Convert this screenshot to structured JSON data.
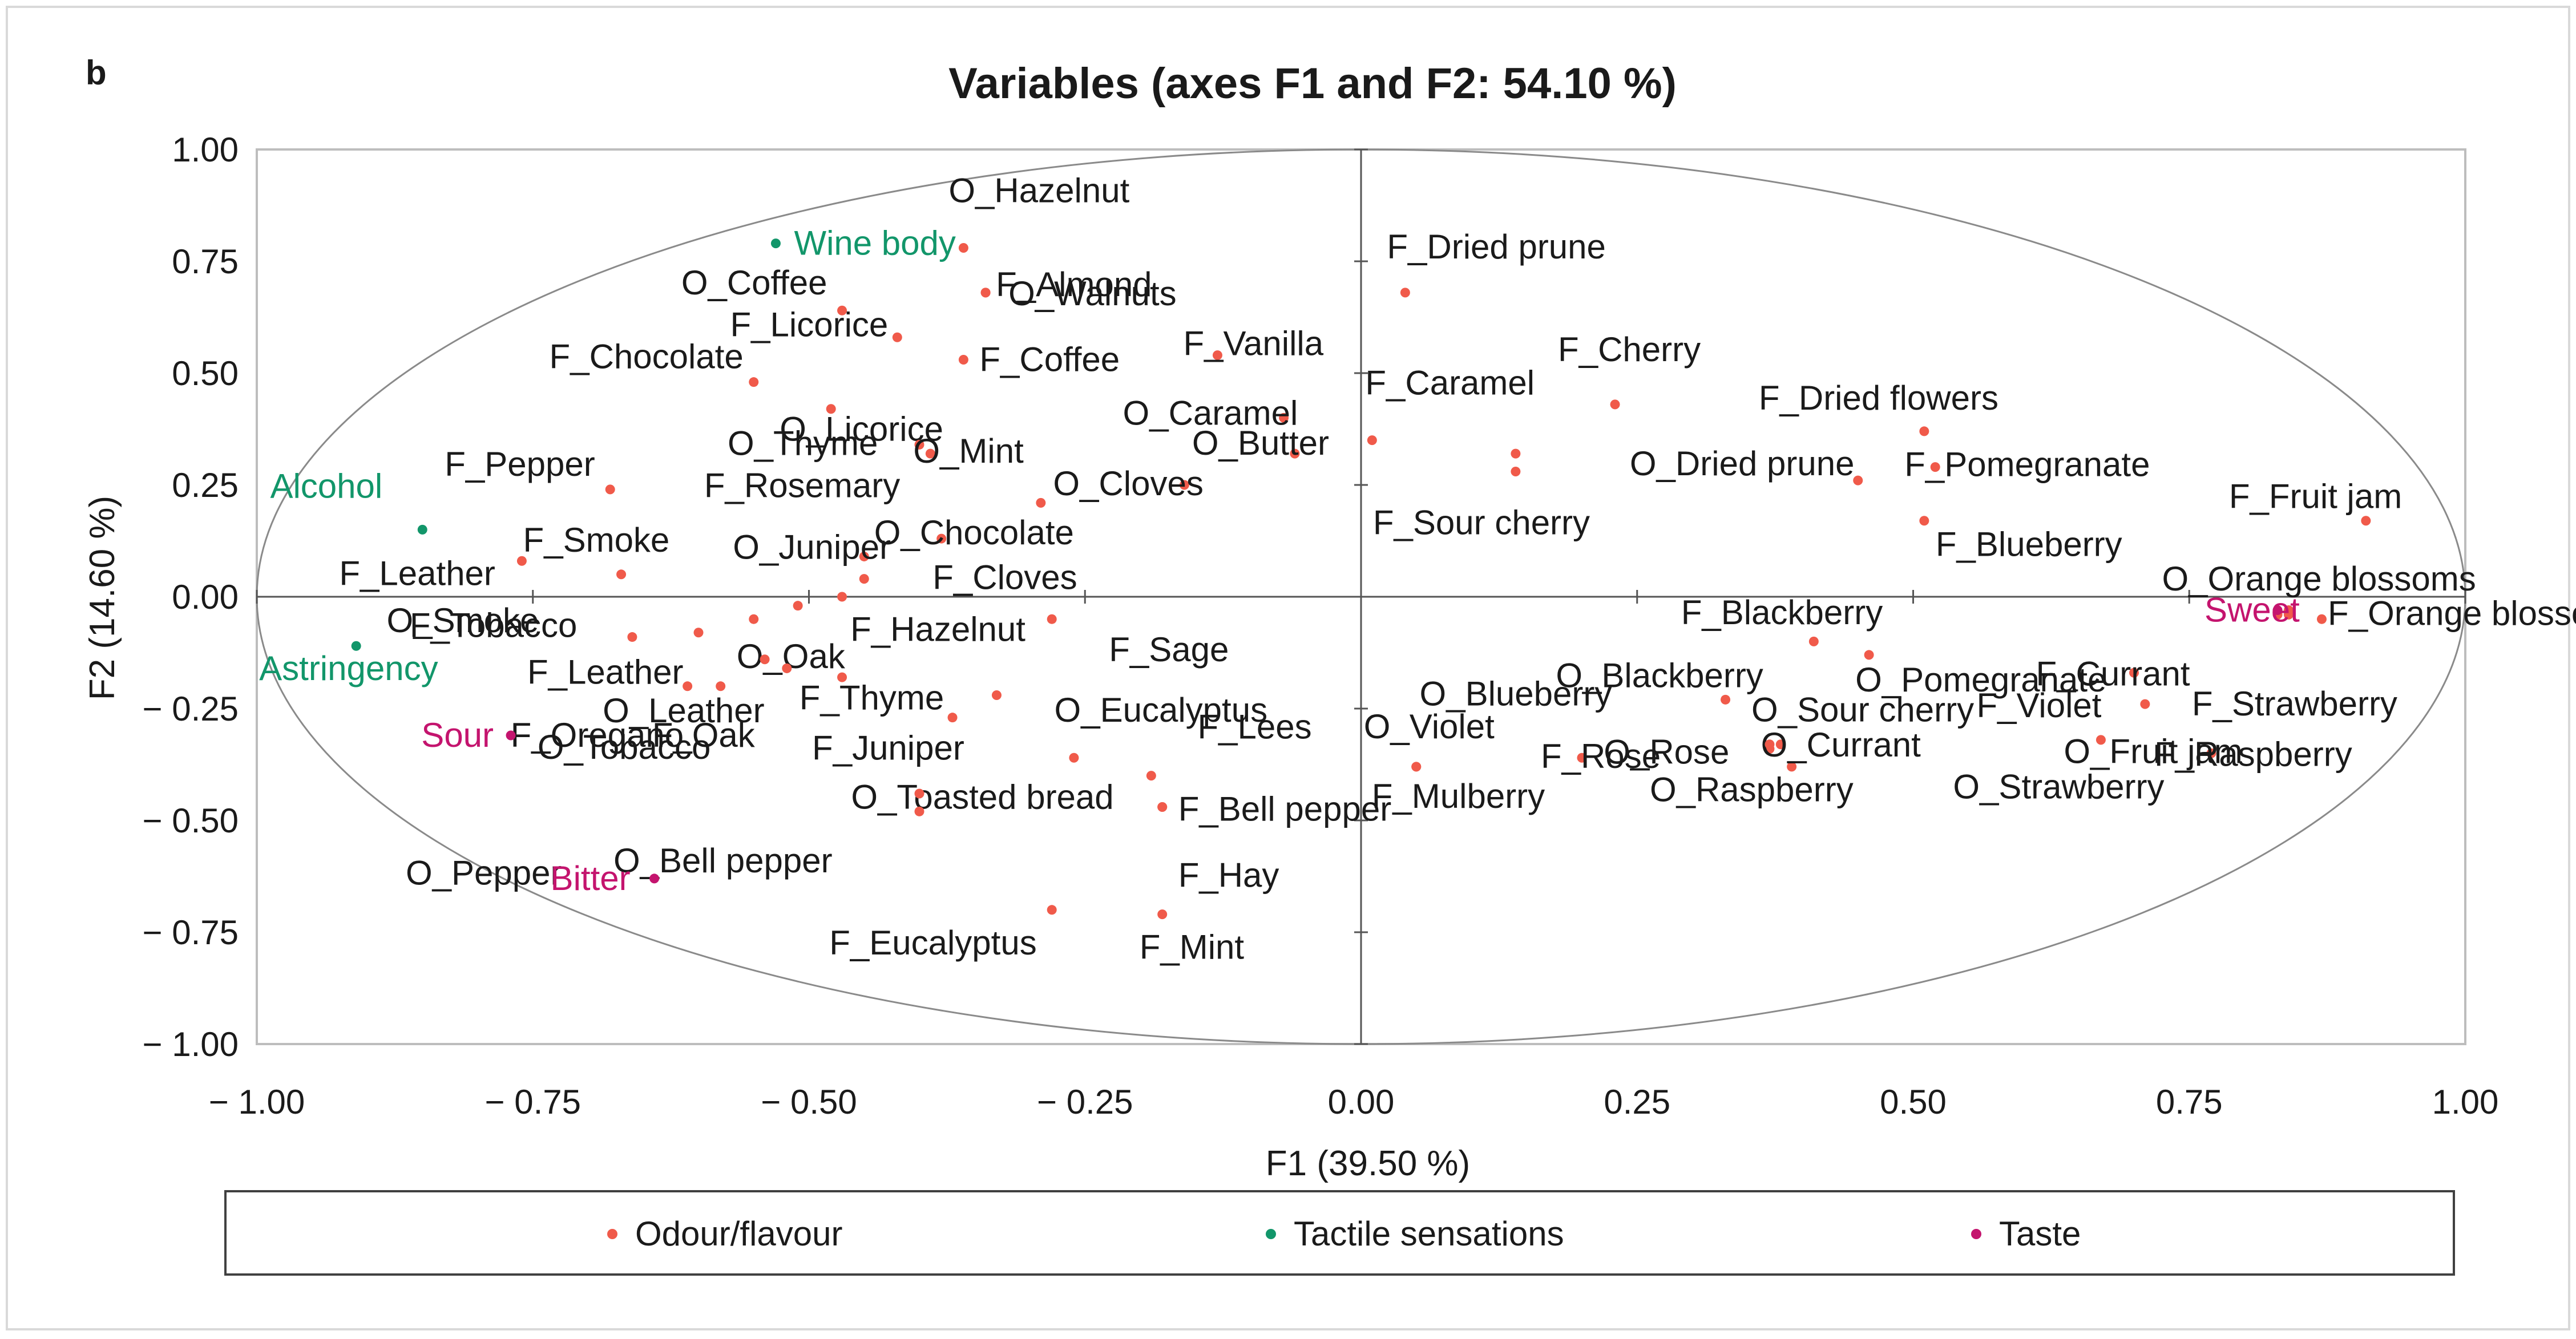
{
  "chart_data": {
    "type": "scatter",
    "panel_label": "b",
    "title": "Variables (axes F1 and F2: 54.10 %)",
    "xlabel": "F1 (39.50 %)",
    "ylabel": "F2 (14.60 %)",
    "xlim": [
      -1.0,
      1.0
    ],
    "ylim": [
      -1.0,
      1.0
    ],
    "x_ticks": [
      "− 1.00",
      "− 0.75",
      "− 0.50",
      "− 0.25",
      "0.00",
      "0.25",
      "0.50",
      "0.75",
      "1.00"
    ],
    "y_ticks": [
      "1.00",
      "0.75",
      "0.50",
      "0.25",
      "0.00",
      "− 0.25",
      "− 0.50",
      "− 0.75",
      "− 1.00"
    ],
    "correlation_circle": true,
    "legend_position": "bottom",
    "colors": {
      "odour_flavour": "#f05a4a",
      "tactile": "#12966a",
      "taste": "#c4146e",
      "axis": "#555555",
      "text": "#1a1a1a"
    },
    "series": [
      {
        "name": "Odour/flavour",
        "color": "#f05a4a",
        "points": [
          {
            "label": "O_Hazelnut",
            "x": -0.36,
            "y": 0.78
          },
          {
            "label": "F_Almond",
            "x": -0.34,
            "y": 0.68
          },
          {
            "label": "O_Walnuts",
            "x": -0.34,
            "y": 0.68
          },
          {
            "label": "O_Coffee",
            "x": -0.47,
            "y": 0.64
          },
          {
            "label": "F_Licorice",
            "x": -0.42,
            "y": 0.58
          },
          {
            "label": "F_Chocolate",
            "x": -0.55,
            "y": 0.48
          },
          {
            "label": "F_Coffee",
            "x": -0.36,
            "y": 0.53
          },
          {
            "label": "F_Vanilla",
            "x": -0.13,
            "y": 0.54
          },
          {
            "label": "O_Licorice",
            "x": -0.48,
            "y": 0.42
          },
          {
            "label": "O_Caramel",
            "x": -0.07,
            "y": 0.4
          },
          {
            "label": "O_Butter",
            "x": -0.06,
            "y": 0.32
          },
          {
            "label": "O_Thyme",
            "x": -0.4,
            "y": 0.34
          },
          {
            "label": "O_Mint",
            "x": -0.39,
            "y": 0.32
          },
          {
            "label": "O_Cloves",
            "x": -0.16,
            "y": 0.25
          },
          {
            "label": "F_Pepper",
            "x": -0.68,
            "y": 0.24
          },
          {
            "label": "F_Smoke",
            "x": -0.67,
            "y": 0.05
          },
          {
            "label": "F_Leather",
            "x": -0.76,
            "y": 0.08
          },
          {
            "label": "F_Rosemary",
            "x": -0.29,
            "y": 0.21
          },
          {
            "label": "O_Chocolate",
            "x": -0.38,
            "y": 0.13
          },
          {
            "label": "O_Juniper",
            "x": -0.45,
            "y": 0.09
          },
          {
            "label": "F_Cloves",
            "x": -0.45,
            "y": 0.04
          },
          {
            "label": "O_Smoke",
            "x": -0.47,
            "y": 0.0
          },
          {
            "label": "F_Tobacco",
            "x": -0.66,
            "y": -0.09
          },
          {
            "label": "F_Leather",
            "x": -0.6,
            "y": -0.08
          },
          {
            "label": "O_Oak",
            "x": -0.55,
            "y": -0.05
          },
          {
            "label": "F_Hazelnut",
            "x": -0.51,
            "y": -0.02
          },
          {
            "label": "F_Sage",
            "x": -0.28,
            "y": -0.05
          },
          {
            "label": "F_Oregano",
            "x": -0.61,
            "y": -0.2
          },
          {
            "label": "F_Oak",
            "x": -0.58,
            "y": -0.2
          },
          {
            "label": "F_Thyme",
            "x": -0.52,
            "y": -0.16
          },
          {
            "label": "O_Eucalyptus",
            "x": -0.47,
            "y": -0.18
          },
          {
            "label": "O_Leather",
            "x": -0.54,
            "y": -0.14
          },
          {
            "label": "F_Lees",
            "x": -0.33,
            "y": -0.22
          },
          {
            "label": "F_Juniper",
            "x": -0.37,
            "y": -0.27
          },
          {
            "label": "O_Tobacco",
            "x": -0.26,
            "y": -0.36
          },
          {
            "label": "O_Toasted bread",
            "x": -0.19,
            "y": -0.4
          },
          {
            "label": "F_Bell pepper",
            "x": -0.18,
            "y": -0.47
          },
          {
            "label": "O_Pepper",
            "x": -0.4,
            "y": -0.48
          },
          {
            "label": "O_Bell pepper",
            "x": -0.4,
            "y": -0.44
          },
          {
            "label": "F_Hay",
            "x": -0.18,
            "y": -0.47
          },
          {
            "label": "F_Eucalyptus",
            "x": -0.28,
            "y": -0.7
          },
          {
            "label": "F_Mint",
            "x": -0.18,
            "y": -0.71
          },
          {
            "label": "F_Dried prune",
            "x": 0.04,
            "y": 0.68
          },
          {
            "label": "F_Cherry",
            "x": 0.23,
            "y": 0.43
          },
          {
            "label": "F_Caramel",
            "x": 0.01,
            "y": 0.35
          },
          {
            "label": "F_Sour cherry",
            "x": 0.14,
            "y": 0.28
          },
          {
            "label": "O_Dried prune",
            "x": 0.14,
            "y": 0.32
          },
          {
            "label": "F_Dried flowers",
            "x": 0.51,
            "y": 0.37
          },
          {
            "label": "F_Pomegranate",
            "x": 0.52,
            "y": 0.29
          },
          {
            "label": "F_Fruit jam",
            "x": 0.91,
            "y": 0.17
          },
          {
            "label": "F_Blackberry",
            "x": 0.45,
            "y": 0.26
          },
          {
            "label": "F_Blueberry",
            "x": 0.51,
            "y": 0.17
          },
          {
            "label": "O_Orange blossoms",
            "x": 0.87,
            "y": -0.05
          },
          {
            "label": "F_Orange blossoms",
            "x": 0.83,
            "y": -0.04
          },
          {
            "label": "O_Blackberry",
            "x": 0.41,
            "y": -0.1
          },
          {
            "label": "O_Pomegranate",
            "x": 0.46,
            "y": -0.13
          },
          {
            "label": "O_Blueberry",
            "x": 0.33,
            "y": -0.23
          },
          {
            "label": "O_Sour cherry",
            "x": 0.37,
            "y": -0.34
          },
          {
            "label": "F_Currant",
            "x": 0.7,
            "y": -0.17
          },
          {
            "label": "F_Violet",
            "x": 0.67,
            "y": -0.32
          },
          {
            "label": "F_Strawberry",
            "x": 0.71,
            "y": -0.24
          },
          {
            "label": "O_Violet",
            "x": 0.05,
            "y": -0.38
          },
          {
            "label": "F_Rose",
            "x": 0.2,
            "y": -0.36
          },
          {
            "label": "O_Rose",
            "x": 0.38,
            "y": -0.33
          },
          {
            "label": "O_Currant",
            "x": 0.39,
            "y": -0.38
          },
          {
            "label": "F_Raspberry",
            "x": 0.77,
            "y": -0.35
          },
          {
            "label": "O_Raspberry",
            "x": 0.37,
            "y": -0.33
          },
          {
            "label": "O_Fruit jam",
            "x": 0.84,
            "y": -0.04
          },
          {
            "label": "F_Mulberry",
            "x": 0.05,
            "y": -0.38
          },
          {
            "label": "O_Strawberry",
            "x": 0.84,
            "y": -0.03
          }
        ]
      },
      {
        "name": "Tactile sensations",
        "color": "#12966a",
        "points": [
          {
            "label": "Wine body",
            "x": -0.53,
            "y": 0.79
          },
          {
            "label": "Alcohol",
            "x": -0.85,
            "y": 0.15
          },
          {
            "label": "Astringency",
            "x": -0.91,
            "y": -0.11
          }
        ]
      },
      {
        "name": "Taste",
        "color": "#c4146e",
        "points": [
          {
            "label": "Sour",
            "x": -0.77,
            "y": -0.31
          },
          {
            "label": "Bitter",
            "x": -0.64,
            "y": -0.63
          },
          {
            "label": "Sweet",
            "x": 0.83,
            "y": -0.03
          }
        ]
      }
    ],
    "legend": [
      "Odour/flavour",
      "Tactile sensations",
      "Taste"
    ]
  }
}
